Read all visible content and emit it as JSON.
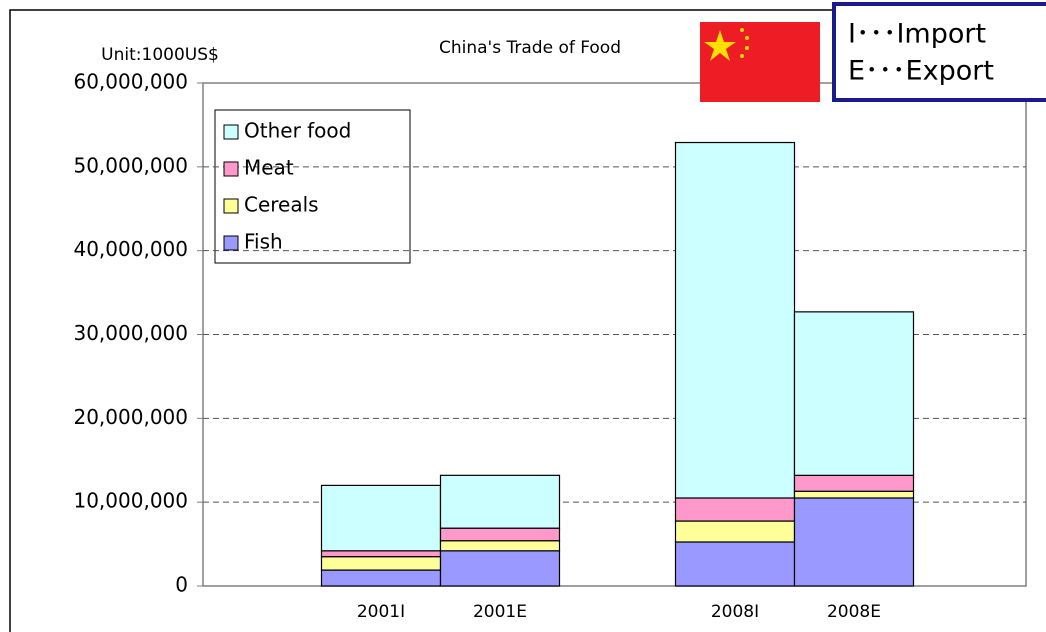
{
  "chart_data": {
    "type": "stacked_bar",
    "title": "China's Trade of Food",
    "unit_label": "Unit:1000US$",
    "annotations": [
      "I･･･Import",
      "E･･･Export"
    ],
    "categories": [
      "2001I",
      "2001E",
      "2008I",
      "2008E"
    ],
    "series": [
      {
        "name": "Fish",
        "color": "#9999ff",
        "values": [
          1900000,
          4200000,
          5250000,
          10500000
        ]
      },
      {
        "name": "Cereals",
        "color": "#ffff99",
        "values": [
          1600000,
          1200000,
          2500000,
          800000
        ]
      },
      {
        "name": "Meat",
        "color": "#ff99cc",
        "values": [
          700000,
          1500000,
          2750000,
          1900000
        ]
      },
      {
        "name": "Other food",
        "color": "#ccffff",
        "values": [
          7800000,
          6300000,
          42400000,
          19500000
        ]
      }
    ],
    "ylim": [
      0,
      60000000
    ],
    "yticks": [
      0,
      {
        "value": 10000000,
        "label": "10,000,000"
      },
      {
        "value": 20000000,
        "label": "20,000,000"
      },
      {
        "value": 30000000,
        "label": "30,000,000"
      },
      {
        "value": 40000000,
        "label": "40,000,000"
      },
      {
        "value": 50000000,
        "label": "50,000,000"
      },
      {
        "value": 60000000,
        "label": "60,000,000"
      }
    ],
    "grid": true,
    "legend": "upper left"
  }
}
